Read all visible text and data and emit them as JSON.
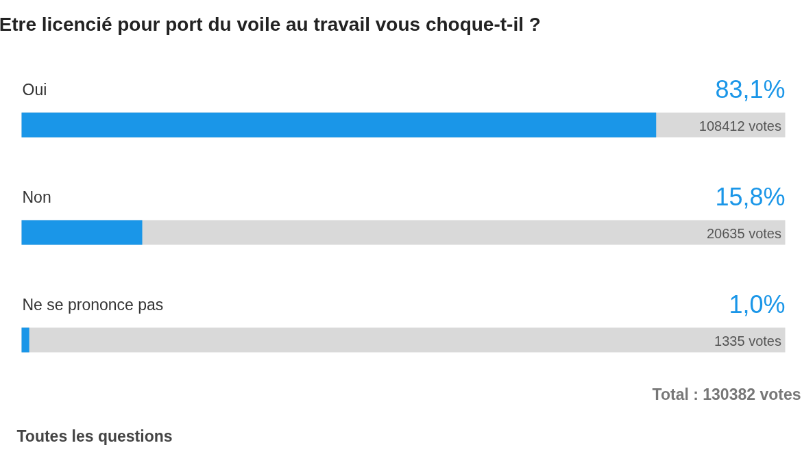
{
  "chart_data": {
    "type": "bar",
    "orientation": "horizontal",
    "title": "Etre licencié pour port du voile au travail vous choque-t-il ?",
    "categories": [
      "Oui",
      "Non",
      "Ne se prononce pas"
    ],
    "values": [
      83.1,
      15.8,
      1.0
    ],
    "value_labels": [
      "83,1%",
      "15,8%",
      "1,0%"
    ],
    "color": "#1a96e8",
    "xlim": [
      0,
      100
    ],
    "grid": false,
    "annotations": [
      "108412 votes",
      "20635 votes",
      "1335 votes",
      "Total : 130382 votes",
      "Toutes les questions"
    ]
  }
}
